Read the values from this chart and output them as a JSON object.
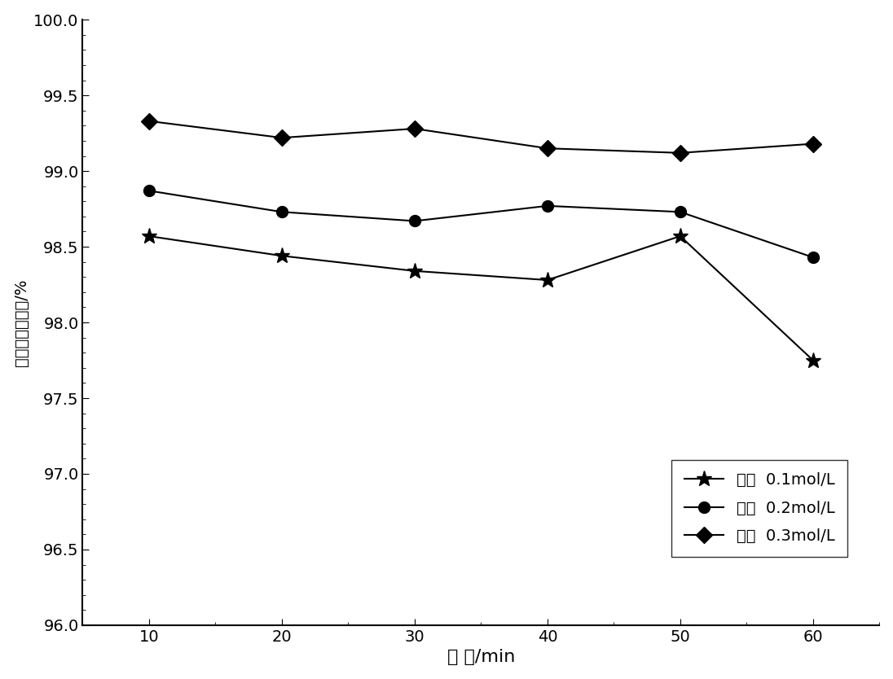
{
  "x": [
    10,
    20,
    30,
    40,
    50,
    60
  ],
  "series": [
    {
      "label": "硫脲  0.1mol/L",
      "y": [
        98.57,
        98.44,
        98.34,
        98.28,
        98.57,
        97.75
      ],
      "marker": "*",
      "markersize": 14
    },
    {
      "label": "硫脲  0.2mol/L",
      "y": [
        98.87,
        98.73,
        98.67,
        98.77,
        98.73,
        98.43
      ],
      "marker": "o",
      "markersize": 10
    },
    {
      "label": "硫脲  0.3mol/L",
      "y": [
        99.33,
        99.22,
        99.28,
        99.15,
        99.12,
        99.18
      ],
      "marker": "D",
      "markersize": 10
    }
  ],
  "xlabel": "时 间/min",
  "ylabel": "氧化态汞去除率/%",
  "ylim": [
    96.0,
    100.0
  ],
  "xlim": [
    5,
    65
  ],
  "xticks": [
    10,
    20,
    30,
    40,
    50,
    60
  ],
  "color": "#000000",
  "linewidth": 1.5,
  "xlabel_fontsize": 16,
  "ylabel_fontsize": 14,
  "tick_fontsize": 14,
  "legend_fontsize": 14
}
